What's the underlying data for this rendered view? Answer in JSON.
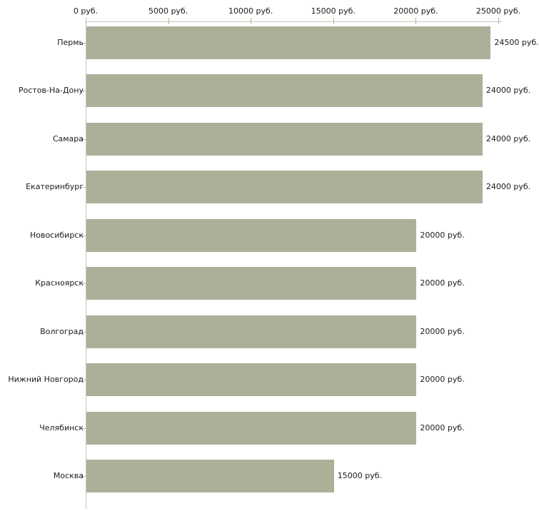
{
  "chart_data": {
    "type": "bar",
    "orientation": "horizontal",
    "title": "",
    "categories": [
      "Пермь",
      "Ростов-На-Дону",
      "Самара",
      "Екатеринбург",
      "Новосибирск",
      "Красноярск",
      "Волгоград",
      "Нижний Новгород",
      "Челябинск",
      "Москва"
    ],
    "values": [
      24500,
      24000,
      24000,
      24000,
      20000,
      20000,
      20000,
      20000,
      20000,
      15000
    ],
    "value_labels": [
      "24500 руб.",
      "24000 руб.",
      "24000 руб.",
      "24000 руб.",
      "20000 руб.",
      "20000 руб.",
      "20000 руб.",
      "20000 руб.",
      "20000 руб.",
      "15000 руб."
    ],
    "x_axis": {
      "position": "top",
      "tick_values": [
        0,
        5000,
        10000,
        15000,
        20000,
        25000
      ],
      "tick_labels": [
        "0 руб.",
        "5000 руб.",
        "10000 руб.",
        "15000 руб.",
        "20000 руб.",
        "25000 руб."
      ],
      "xlim": [
        0,
        25000
      ]
    },
    "legend": false,
    "grid": false,
    "colors": {
      "bar_fill": "#abb198",
      "axis_line": "#c6c6b8",
      "tick_mark": "#b6b69a",
      "text": "#1b1b1b",
      "background": "#ffffff"
    }
  }
}
